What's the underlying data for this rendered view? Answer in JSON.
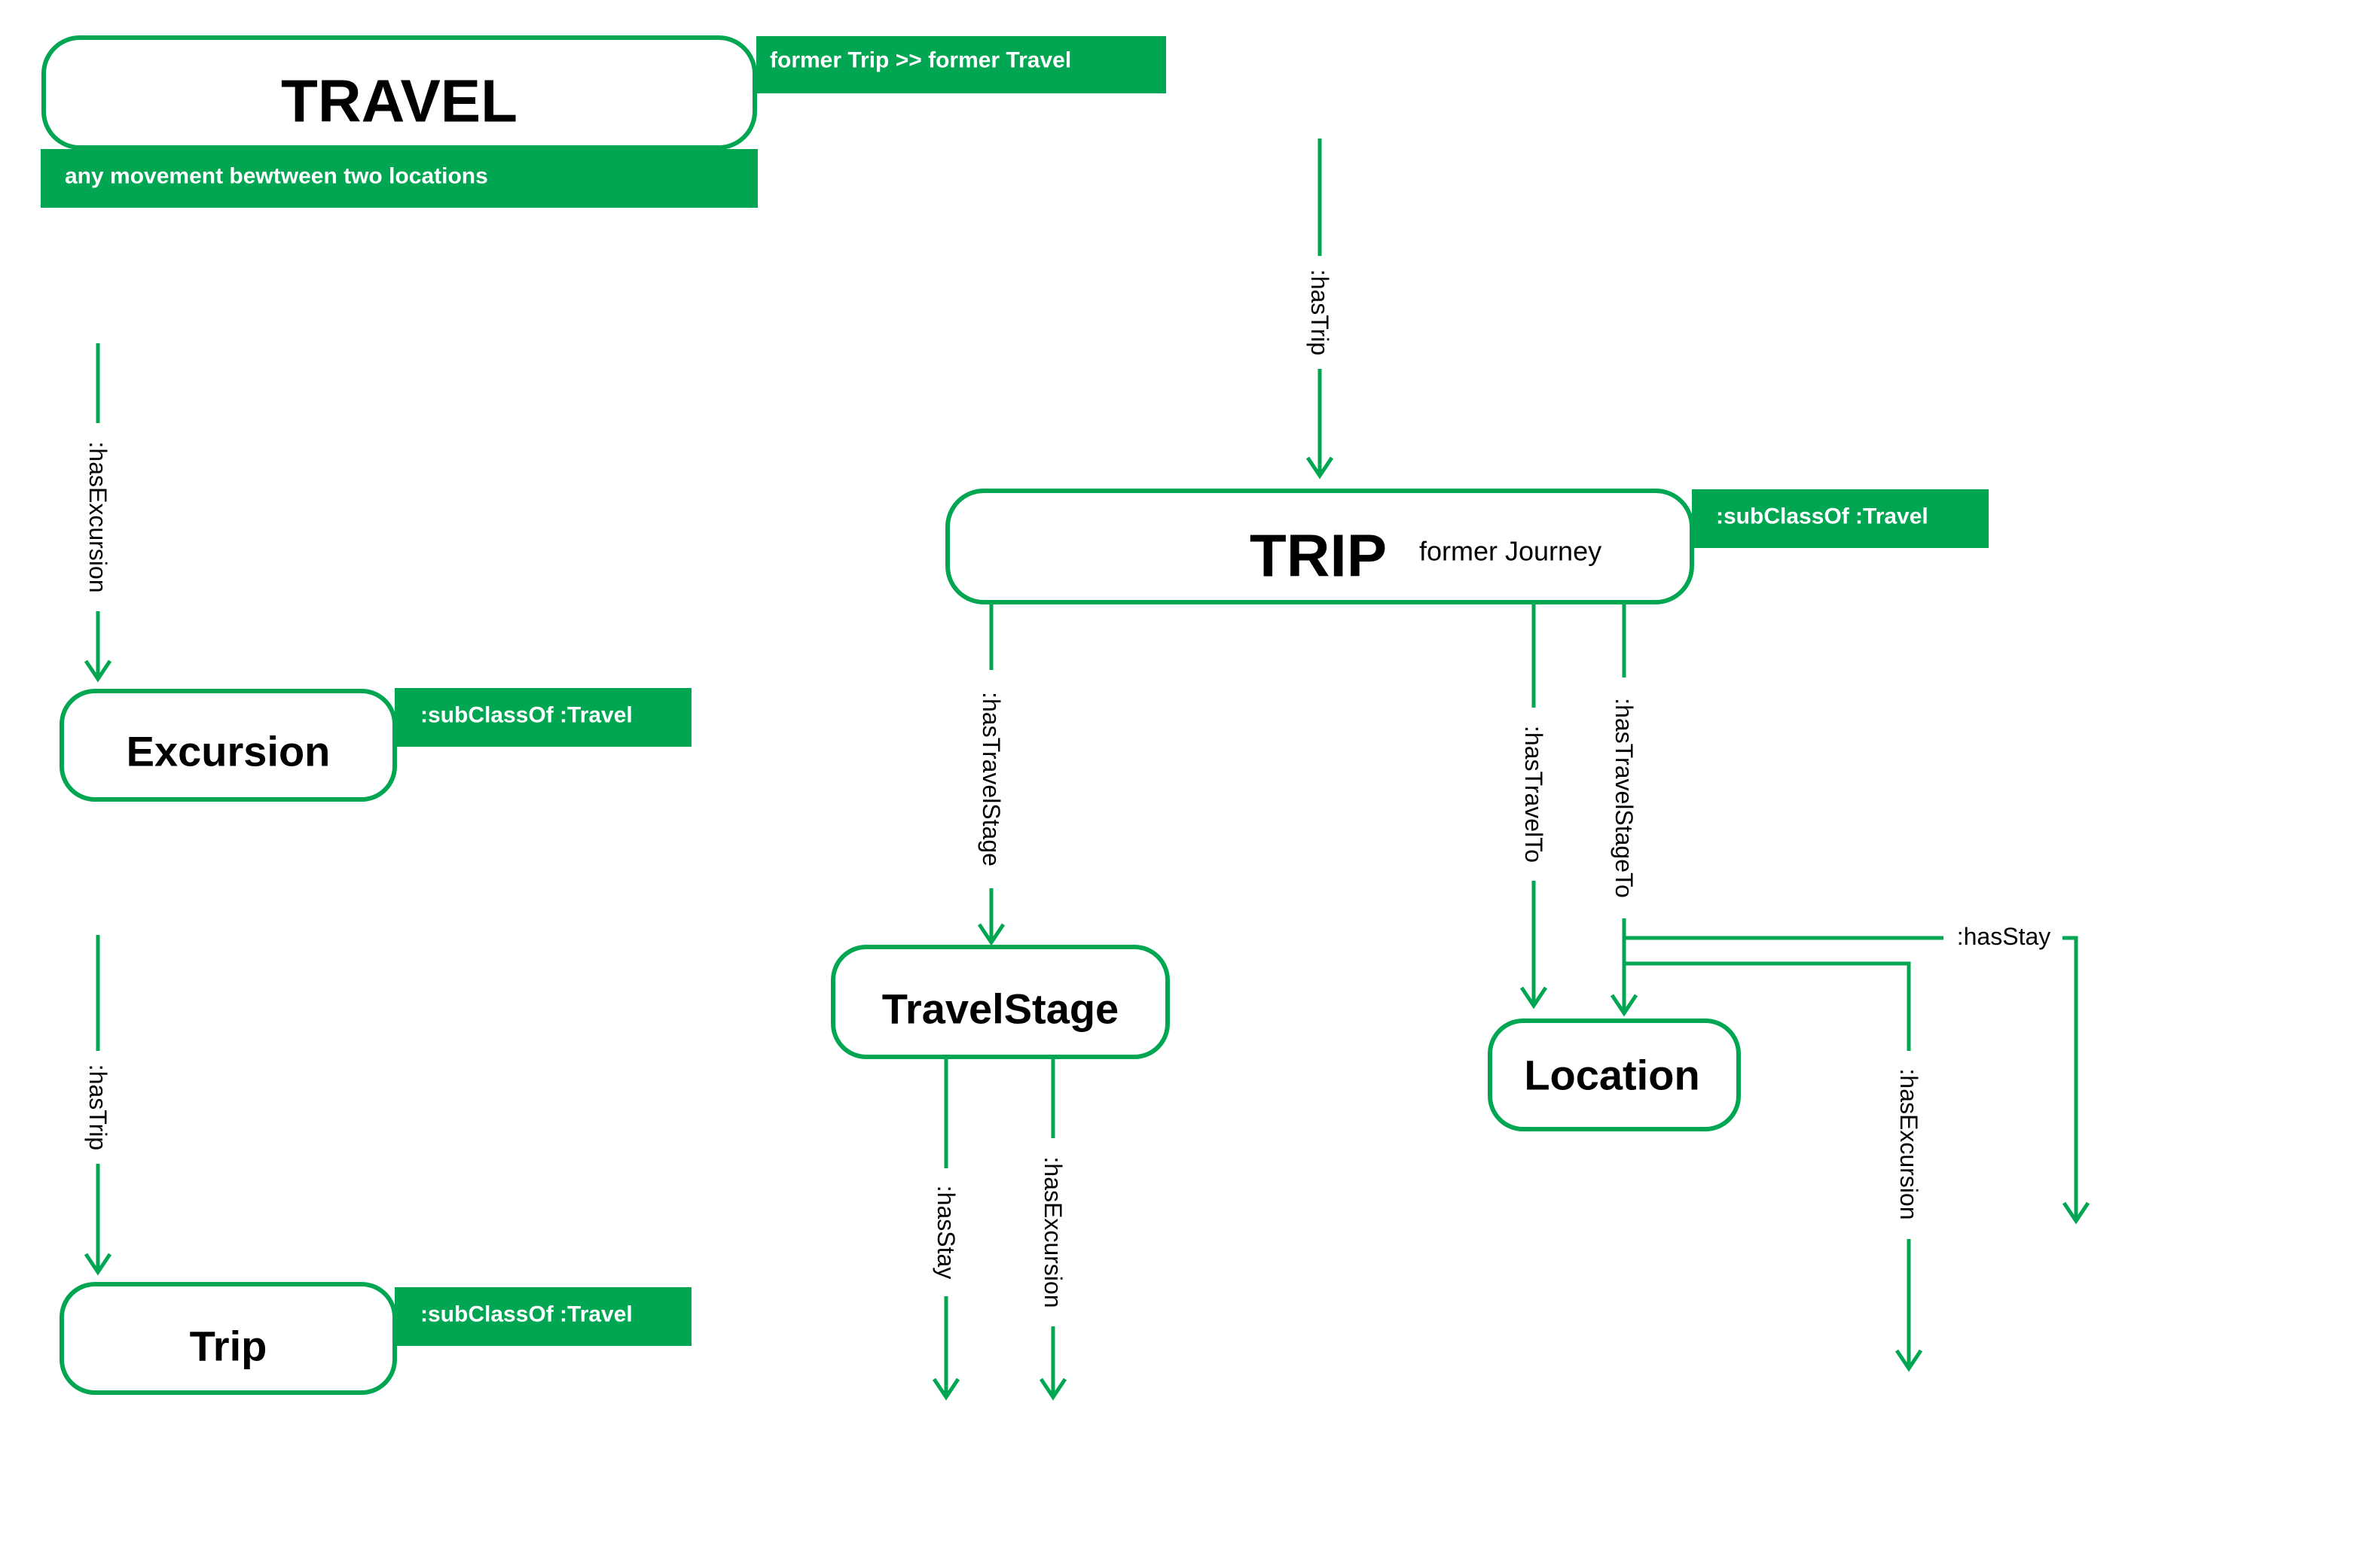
{
  "colors": {
    "accent": "#00a651",
    "text": "#000000",
    "background": "#ffffff"
  },
  "nodes": {
    "travel": {
      "label": "TRAVEL",
      "tag": "former Trip >> former Travel",
      "description": "any movement bewtween two locations"
    },
    "excursion": {
      "label": "Excursion",
      "tag": ":subClassOf :Travel"
    },
    "trip_small": {
      "label": "Trip",
      "tag": ":subClassOf :Travel"
    },
    "trip": {
      "label": "TRIP",
      "note": "former Journey",
      "tag": ":subClassOf :Travel"
    },
    "travel_stage": {
      "label": "TravelStage"
    },
    "location": {
      "label": "Location"
    }
  },
  "edges": {
    "has_excursion_left": ":hasExcursion",
    "has_trip_left": ":hasTrip",
    "has_trip_top": ":hasTrip",
    "has_travel_stage": ":hasTravelStage",
    "has_travel_to": ":hasTravelTo",
    "has_travel_stage_to": ":hasTravelStageTo",
    "has_stay_stage": ":hasStay",
    "has_excursion_stage": ":hasExcursion",
    "has_stay_location": ":hasStay",
    "has_excursion_location": ":hasExcursion"
  }
}
